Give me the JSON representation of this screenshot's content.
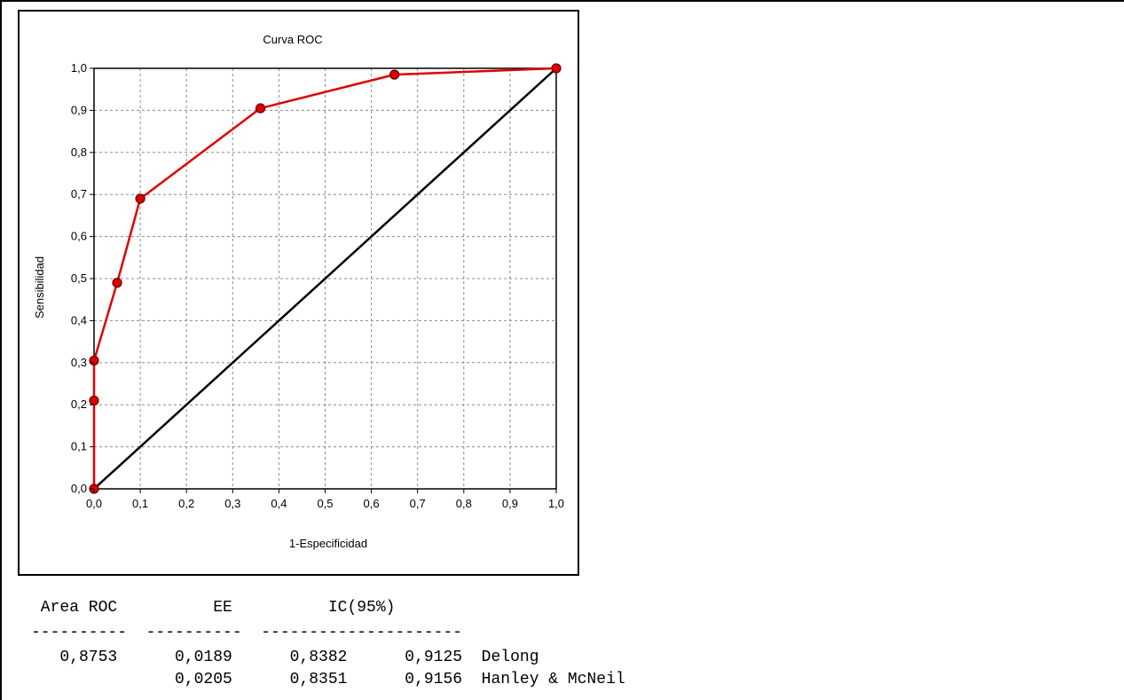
{
  "chart_data": {
    "type": "line",
    "title": "Curva ROC",
    "xlabel": "1-Especificidad",
    "ylabel": "Sensibilidad",
    "xlim": [
      0,
      1
    ],
    "ylim": [
      0,
      1
    ],
    "grid": true,
    "xticks": [
      "0,0",
      "0,1",
      "0,2",
      "0,3",
      "0,4",
      "0,5",
      "0,6",
      "0,7",
      "0,8",
      "0,9",
      "1,0"
    ],
    "yticks": [
      "0,0",
      "0,1",
      "0,2",
      "0,3",
      "0,4",
      "0,5",
      "0,6",
      "0,7",
      "0,8",
      "0,9",
      "1,0"
    ],
    "series": [
      {
        "color": "#e00000",
        "x": [
          0,
          0,
          0,
          0.05,
          0.1,
          0.36,
          0.65,
          1.0
        ],
        "y": [
          0,
          0.21,
          0.305,
          0.49,
          0.69,
          0.905,
          0.985,
          1.0
        ]
      },
      {
        "color": "#000000",
        "x": [
          0,
          1
        ],
        "y": [
          0,
          1
        ]
      }
    ]
  },
  "stats": {
    "header": " Area ROC          EE          IC(95%)",
    "separator": "----------  ----------  ---------------------",
    "rows": [
      "   0,8753      0,0189      0,8382      0,9125  Delong",
      "               0,0205      0,8351      0,9156  Hanley & McNeil"
    ]
  }
}
